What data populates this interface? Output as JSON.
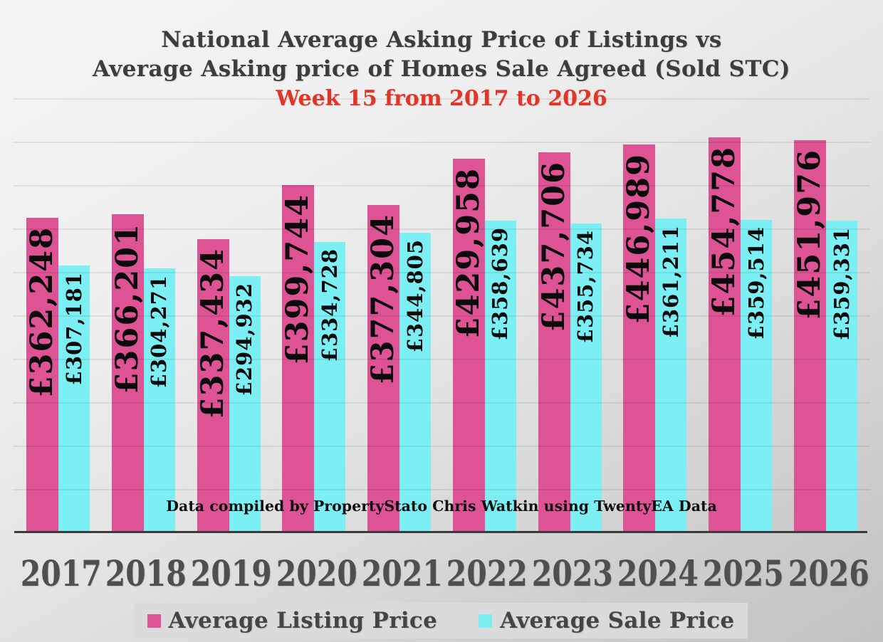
{
  "title": {
    "line1": "National Average Asking Price of Listings vs",
    "line2": "Average Asking price of Homes Sale Agreed (Sold STC)",
    "line3": "Week 15 from 2017 to 2026"
  },
  "footnote": "Data compiled by PropertyStato Chris Watkin using TwentyEA Data",
  "legend": {
    "items": [
      {
        "label": "Average Listing Price",
        "color": "#dd5394"
      },
      {
        "label": "Average Sale Price",
        "color": "#7beff4"
      }
    ]
  },
  "colors": {
    "listing_bar": "#dd5394",
    "sale_bar": "#7beff4",
    "subtitle_red": "#e13627",
    "title_gray": "#3d3d3d",
    "axis_label_gray": "#4f4f4f",
    "baseline": "#3a3a3a",
    "legend_strip": "#dbdbdb"
  },
  "chart_data": {
    "type": "bar",
    "title": "National Average Asking Price of Listings vs Average Asking price of Homes Sale Agreed (Sold STC)",
    "subtitle": "Week 15 from 2017 to 2026",
    "categories": [
      "2017",
      "2018",
      "2019",
      "2020",
      "2021",
      "2022",
      "2023",
      "2024",
      "2025",
      "2026"
    ],
    "series": [
      {
        "name": "Average Listing Price",
        "color": "#dd5394",
        "values": [
          362248,
          366201,
          337434,
          399744,
          377304,
          429958,
          437706,
          446989,
          454778,
          451976
        ],
        "labels": [
          "£362,248",
          "£366,201",
          "£337,434",
          "£399,744",
          "£377,304",
          "£429,958",
          "£437,706",
          "£446,989",
          "£454,778",
          "£451,976"
        ]
      },
      {
        "name": "Average Sale Price",
        "color": "#7beff4",
        "values": [
          307181,
          304271,
          294932,
          334728,
          344805,
          358639,
          355734,
          361211,
          359514,
          359331
        ],
        "labels": [
          "£307,181",
          "£304,271",
          "£294,932",
          "£334,728",
          "£344,805",
          "£358,639",
          "£355,734",
          "£361,211",
          "£359,514",
          "£359,331"
        ]
      }
    ],
    "ylim": [
      0,
      500000
    ],
    "gridline_step": 50000,
    "grid": "horizontal",
    "legend_position": "bottom",
    "value_label_orientation": "vertical-bottom-up",
    "note": "Data compiled by PropertyStato Chris Watkin using TwentyEA Data"
  }
}
